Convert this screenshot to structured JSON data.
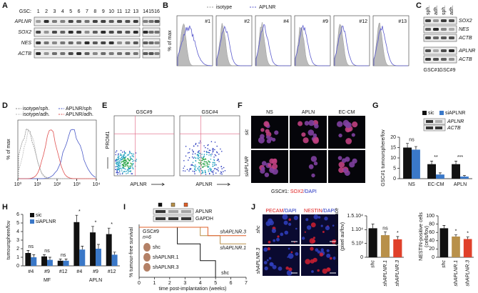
{
  "panels": {
    "A": {
      "label": "A",
      "lane_prefix": "GSC:",
      "lanes": [
        "1",
        "2",
        "3",
        "4",
        "5",
        "6",
        "7",
        "8",
        "9",
        "10",
        "11",
        "12",
        "13",
        "14",
        "15",
        "16"
      ],
      "rows": [
        "APLNR",
        "SOX2",
        "NES",
        "ACTB"
      ]
    },
    "B": {
      "label": "B",
      "legend": [
        {
          "name": "isotype",
          "color": "#999999"
        },
        {
          "name": "APLNR",
          "color": "#5a5acd"
        }
      ],
      "y_label": "% of max",
      "samples": [
        "#1",
        "#2",
        "#4",
        "#9",
        "#12",
        "#13"
      ]
    },
    "C": {
      "label": "C",
      "columns": [
        "sph.",
        "adh.",
        "sph.",
        "adh."
      ],
      "rows_top": [
        "SOX2",
        "NES",
        "ACTB"
      ],
      "rows_bottom": [
        "APLNR",
        "ACTB"
      ],
      "groups": [
        "GSC#1",
        "GSC#9"
      ]
    },
    "D": {
      "label": "D",
      "legend": [
        {
          "name": "isotype/sph.",
          "color": "#888888"
        },
        {
          "name": "APLNR/sph",
          "color": "#4a5ac8"
        },
        {
          "name": "isotype/adh.",
          "color": "#bbbbbb"
        },
        {
          "name": "APLNR/adh.",
          "color": "#e05050"
        }
      ],
      "y_label": "% of max",
      "log_x": true,
      "xlim": [
        1,
        10000
      ],
      "xticks": [
        {
          "value": 1,
          "label": "10⁰"
        },
        {
          "value": 10,
          "label": "10¹"
        },
        {
          "value": 100,
          "label": "10²"
        },
        {
          "value": 1000,
          "label": "10³"
        },
        {
          "value": 10000,
          "label": "10⁴"
        }
      ]
    },
    "E": {
      "label": "E",
      "plots": [
        "GSC#9",
        "GSC#4"
      ],
      "y_label": "PROM1",
      "x_label": "APLNR"
    },
    "F": {
      "label": "F",
      "columns": [
        "NS",
        "APLN",
        "EC-CM"
      ],
      "rows": [
        "sic",
        "siAPLNR"
      ],
      "caption": [
        {
          "text": "GSC#1: ",
          "color": "#111111"
        },
        {
          "text": "SOX2",
          "color": "#e02020"
        },
        {
          "text": "/DAPI",
          "color": "#2030c0"
        }
      ]
    },
    "G": {
      "label": "G",
      "blot_labels": [
        "APLNR",
        "ACTB"
      ]
    },
    "H": {
      "label": "H"
    },
    "I": {
      "label": "I",
      "blot_labels": [
        "APLNR",
        "GAPDH"
      ],
      "cohort": "GSC#9",
      "n": "n=6"
    },
    "J": {
      "label": "J",
      "headers": [
        [
          {
            "text": "PECAM",
            "color": "#e02020"
          },
          {
            "text": "/DAPI",
            "color": "#2030c0"
          }
        ],
        [
          {
            "text": "NESTIN",
            "color": "#e02020"
          },
          {
            "text": "/DAPI",
            "color": "#2030c0"
          }
        ]
      ],
      "rows": [
        "shc",
        "shAPLNR.3"
      ]
    }
  },
  "chart_data": [
    {
      "type": "bar",
      "y_label": "GSC#1 tumoursphere/fov",
      "categories": [
        "NS",
        "EC-CM",
        "APLN"
      ],
      "series": [
        {
          "name": "sic",
          "color": "#111111",
          "values": [
            15,
            7,
            7
          ],
          "errors": [
            2,
            1.5,
            1.5
          ]
        },
        {
          "name": "siAPLNR",
          "color": "#3a78c8",
          "values": [
            14,
            2,
            1
          ],
          "errors": [
            1.5,
            0.8,
            0.5
          ]
        }
      ],
      "annotations": [
        "ns",
        "**",
        "***"
      ],
      "ylim": [
        0,
        20
      ],
      "yticks": [
        0,
        5,
        10,
        15,
        20
      ]
    },
    {
      "type": "bar",
      "y_label": "tumoursphere/fov",
      "categories": [
        "#4",
        "#9",
        "#12",
        "#4",
        "#9",
        "#12"
      ],
      "groups": [
        "MF",
        "APLN"
      ],
      "series": [
        {
          "name": "sic",
          "color": "#111111",
          "values": [
            1.5,
            1.1,
            0.6,
            5.1,
            3.9,
            3.7
          ],
          "errors": [
            0.3,
            0.2,
            0.2,
            0.8,
            0.7,
            0.7
          ]
        },
        {
          "name": "siAPLNR",
          "color": "#3a78c8",
          "values": [
            1.0,
            0.7,
            0.6,
            1.9,
            2.0,
            1.3
          ],
          "errors": [
            0.3,
            0.3,
            0.2,
            0.4,
            0.5,
            0.3
          ]
        }
      ],
      "annotations": [
        "ns",
        "ns",
        "ns",
        "*",
        "*",
        "*"
      ],
      "ylim": [
        0,
        6
      ],
      "yticks": [
        0,
        1,
        2,
        3,
        4,
        5,
        6
      ]
    },
    {
      "type": "line",
      "y_label": "% tumour-free survival",
      "x_label": "time post-implantation (weeks)",
      "series": [
        {
          "name": "shc",
          "color": "#111111",
          "x": [
            0,
            2.5,
            2.5,
            4,
            4,
            5,
            5
          ],
          "values": [
            100,
            100,
            66.7,
            66.7,
            33.3,
            33.3,
            0
          ]
        },
        {
          "name": "shAPLNR.1",
          "color": "#b8904a",
          "x": [
            0,
            4,
            4,
            5.3,
            5.3,
            7
          ],
          "values": [
            100,
            100,
            83.3,
            83.3,
            66.7,
            66.7
          ]
        },
        {
          "name": "shAPLNR.3",
          "color": "#e0602a",
          "x": [
            0,
            4.5,
            4.5,
            7
          ],
          "values": [
            100,
            100,
            83.3,
            83.3
          ]
        }
      ],
      "xlim": [
        0,
        7
      ],
      "xticks": [
        0,
        1,
        2,
        3,
        4,
        5,
        6,
        7
      ],
      "ylim": [
        0,
        100
      ]
    },
    {
      "type": "bar",
      "y_label": [
        "cumulative vessel surface",
        "(pixel au/fov)"
      ],
      "categories": [
        "shc",
        "shAPLNR.1",
        "shAPLNR.3"
      ],
      "values": [
        10500,
        8000,
        6500
      ],
      "errors": [
        1500,
        1200,
        1000
      ],
      "colors": [
        "#111111",
        "#b8904a",
        "#e0402a"
      ],
      "annotations": [
        null,
        "ns",
        "*"
      ],
      "ylim": [
        0,
        15000
      ],
      "yticks": [
        0,
        {
          "value": 5000,
          "label": "5.10³"
        },
        {
          "value": 10000,
          "label": "1.10⁴"
        },
        {
          "value": 15000,
          "label": "1.5.10⁴"
        }
      ]
    },
    {
      "type": "bar",
      "y_label": [
        "NESTIN-positive cells",
        "(cells/fov)"
      ],
      "categories": [
        "shc",
        "shAPLNR.1",
        "shAPLNR.3"
      ],
      "values": [
        70,
        50,
        44
      ],
      "errors": [
        7,
        4,
        5
      ],
      "colors": [
        "#111111",
        "#b8904a",
        "#e0402a"
      ],
      "annotations": [
        null,
        "*",
        "*"
      ],
      "ylim": [
        0,
        100
      ],
      "yticks": [
        0,
        20,
        40,
        60,
        80,
        100
      ]
    }
  ]
}
